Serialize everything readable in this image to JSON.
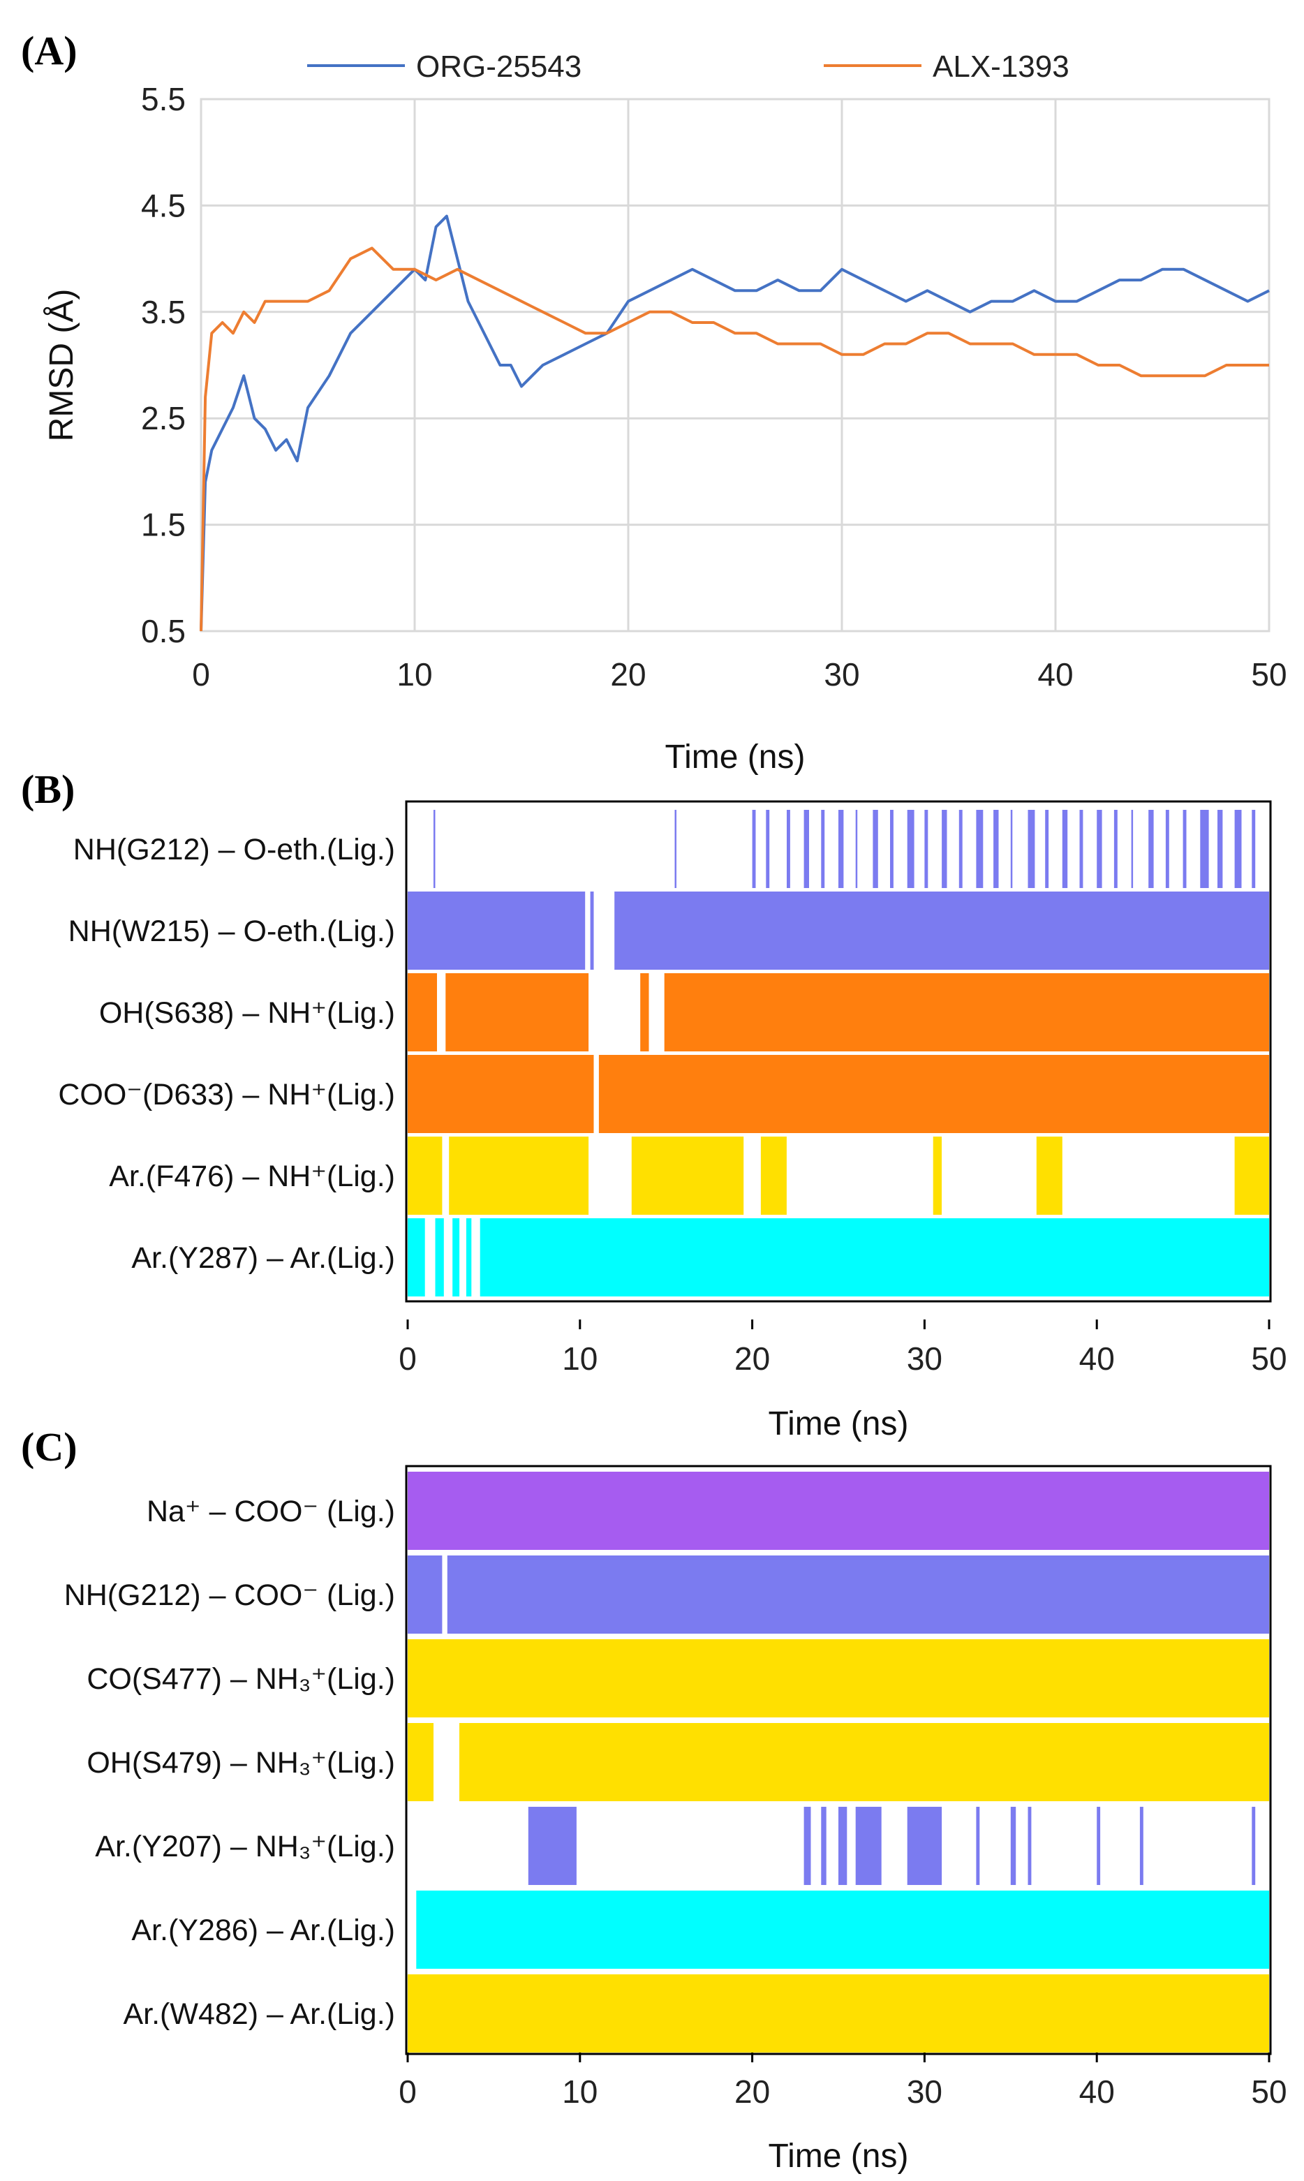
{
  "chart_data": [
    {
      "type": "line",
      "panel": "(A)",
      "xlabel": "Time (ns)",
      "ylabel": "RMSD (Å)",
      "xlim": [
        0,
        50
      ],
      "ylim": [
        0.5,
        5.5
      ],
      "xticks": [
        "0",
        "10",
        "20",
        "30",
        "40",
        "50"
      ],
      "yticks": [
        "0.5",
        "1.5",
        "2.5",
        "3.5",
        "4.5",
        "5.5"
      ],
      "grid": true,
      "legend_position": "top",
      "series": [
        {
          "name": "ORG-25543",
          "color": "#4472c4",
          "x": [
            0,
            0.2,
            0.5,
            1,
            1.5,
            2,
            2.5,
            3,
            3.5,
            4,
            4.5,
            5,
            6,
            7,
            8,
            9,
            10,
            10.5,
            11,
            11.5,
            12,
            12.5,
            13,
            13.5,
            14,
            14.5,
            15,
            15.5,
            16,
            17,
            18,
            19,
            20,
            21,
            22,
            23,
            24,
            25,
            26,
            27,
            28,
            29,
            30,
            31,
            32,
            33,
            34,
            35,
            36,
            37,
            38,
            39,
            40,
            41,
            42,
            43,
            44,
            45,
            46,
            47,
            48,
            49,
            50
          ],
          "y": [
            0.5,
            1.9,
            2.2,
            2.4,
            2.6,
            2.9,
            2.5,
            2.4,
            2.2,
            2.3,
            2.1,
            2.6,
            2.9,
            3.3,
            3.5,
            3.7,
            3.9,
            3.8,
            4.3,
            4.4,
            4.0,
            3.6,
            3.4,
            3.2,
            3.0,
            3.0,
            2.8,
            2.9,
            3.0,
            3.1,
            3.2,
            3.3,
            3.6,
            3.7,
            3.8,
            3.9,
            3.8,
            3.7,
            3.7,
            3.8,
            3.7,
            3.7,
            3.9,
            3.8,
            3.7,
            3.6,
            3.7,
            3.6,
            3.5,
            3.6,
            3.6,
            3.7,
            3.6,
            3.6,
            3.7,
            3.8,
            3.8,
            3.9,
            3.9,
            3.8,
            3.7,
            3.6,
            3.7
          ]
        },
        {
          "name": "ALX-1393",
          "color": "#ed7d31",
          "x": [
            0,
            0.2,
            0.5,
            1,
            1.5,
            2,
            2.5,
            3,
            4,
            5,
            6,
            7,
            8,
            9,
            10,
            11,
            12,
            13,
            14,
            15,
            16,
            17,
            18,
            19,
            20,
            21,
            22,
            23,
            24,
            25,
            26,
            27,
            28,
            29,
            30,
            31,
            32,
            33,
            34,
            35,
            36,
            37,
            38,
            39,
            40,
            41,
            42,
            43,
            44,
            45,
            46,
            47,
            48,
            49,
            50
          ],
          "y": [
            0.5,
            2.7,
            3.3,
            3.4,
            3.3,
            3.5,
            3.4,
            3.6,
            3.6,
            3.6,
            3.7,
            4.0,
            4.1,
            3.9,
            3.9,
            3.8,
            3.9,
            3.8,
            3.7,
            3.6,
            3.5,
            3.4,
            3.3,
            3.3,
            3.4,
            3.5,
            3.5,
            3.4,
            3.4,
            3.3,
            3.3,
            3.2,
            3.2,
            3.2,
            3.1,
            3.1,
            3.2,
            3.2,
            3.3,
            3.3,
            3.2,
            3.2,
            3.2,
            3.1,
            3.1,
            3.1,
            3.0,
            3.0,
            2.9,
            2.9,
            2.9,
            2.9,
            3.0,
            3.0,
            3.0
          ]
        }
      ]
    },
    {
      "type": "heatmap",
      "panel": "(B)",
      "xlabel": "Time (ns)",
      "xlim": [
        0,
        50
      ],
      "xticks": [
        "0",
        "10",
        "20",
        "30",
        "40",
        "50"
      ],
      "rows": [
        {
          "label": "NH(G212) – O-eth.(Lig.)",
          "color": "#7b7bf0",
          "present": [
            [
              1.5,
              1.6
            ],
            [
              15.5,
              15.6
            ],
            [
              20,
              20.2
            ],
            [
              20.8,
              21
            ],
            [
              22,
              22.2
            ],
            [
              23,
              23.3
            ],
            [
              24,
              24.2
            ],
            [
              25,
              25.3
            ],
            [
              26,
              26.1
            ],
            [
              27,
              27.3
            ],
            [
              28,
              28.2
            ],
            [
              29,
              29.4
            ],
            [
              30,
              30.2
            ],
            [
              31,
              31.3
            ],
            [
              32,
              32.2
            ],
            [
              33,
              33.4
            ],
            [
              34,
              34.3
            ],
            [
              35,
              35.1
            ],
            [
              36,
              36.4
            ],
            [
              37,
              37.2
            ],
            [
              38,
              38.3
            ],
            [
              39,
              39.2
            ],
            [
              40,
              40.3
            ],
            [
              41,
              41.2
            ],
            [
              42,
              42.1
            ],
            [
              43,
              43.3
            ],
            [
              44,
              44.2
            ],
            [
              45,
              45.2
            ],
            [
              46,
              46.5
            ],
            [
              47,
              47.3
            ],
            [
              48,
              48.4
            ],
            [
              49,
              49.2
            ]
          ]
        },
        {
          "label": "NH(W215) – O-eth.(Lig.)",
          "color": "#7b7bf0",
          "present": [
            [
              0,
              10.3
            ],
            [
              10.6,
              10.8
            ],
            [
              12,
              50
            ]
          ]
        },
        {
          "label": "OH(S638) – NH⁺(Lig.)",
          "color": "#ff7f0e",
          "present": [
            [
              0,
              1.7
            ],
            [
              2.2,
              10.5
            ],
            [
              13.5,
              14
            ],
            [
              14.9,
              50
            ]
          ]
        },
        {
          "label": "COO⁻(D633) – NH⁺(Lig.)",
          "color": "#ff7f0e",
          "present": [
            [
              0,
              10.8
            ],
            [
              11.1,
              50
            ]
          ]
        },
        {
          "label": "Ar.(F476) – NH⁺(Lig.)",
          "color": "#ffe000",
          "present": [
            [
              0,
              2
            ],
            [
              2.4,
              10.5
            ],
            [
              13,
              19.5
            ],
            [
              20.5,
              22
            ],
            [
              30.5,
              31
            ],
            [
              36.5,
              38
            ],
            [
              48,
              50
            ]
          ]
        },
        {
          "label": "Ar.(Y287) – Ar.(Lig.)",
          "color": "#00ffff",
          "present": [
            [
              0,
              1
            ],
            [
              1.6,
              2.1
            ],
            [
              2.6,
              3
            ],
            [
              3.4,
              3.7
            ],
            [
              4.2,
              50
            ]
          ]
        }
      ]
    },
    {
      "type": "heatmap",
      "panel": "(C)",
      "xlabel": "Time (ns)",
      "xlim": [
        0,
        50
      ],
      "xticks": [
        "0",
        "10",
        "20",
        "30",
        "40",
        "50"
      ],
      "rows": [
        {
          "label": "Na⁺ – COO⁻ (Lig.)",
          "color": "#a65cf0",
          "present": [
            [
              0,
              50
            ]
          ]
        },
        {
          "label": "NH(G212) – COO⁻ (Lig.)",
          "color": "#7b7bf0",
          "present": [
            [
              0,
              2
            ],
            [
              2.3,
              50
            ]
          ]
        },
        {
          "label": "CO(S477) – NH₃⁺(Lig.)",
          "color": "#ffe000",
          "present": [
            [
              0,
              50
            ]
          ]
        },
        {
          "label": "OH(S479) – NH₃⁺(Lig.)",
          "color": "#ffe000",
          "present": [
            [
              0,
              1.5
            ],
            [
              3,
              50
            ]
          ]
        },
        {
          "label": "Ar.(Y207) – NH₃⁺(Lig.)",
          "color": "#7b7bf0",
          "present": [
            [
              7,
              9.8
            ],
            [
              23,
              23.4
            ],
            [
              24,
              24.3
            ],
            [
              25,
              25.5
            ],
            [
              26,
              27.5
            ],
            [
              29,
              31
            ],
            [
              33,
              33.2
            ],
            [
              35,
              35.3
            ],
            [
              36,
              36.2
            ],
            [
              40,
              40.2
            ],
            [
              42.5,
              42.7
            ],
            [
              49,
              49.2
            ]
          ]
        },
        {
          "label": "Ar.(Y286) – Ar.(Lig.)",
          "color": "#00ffff",
          "present": [
            [
              0.5,
              50
            ]
          ]
        },
        {
          "label": "Ar.(W482) – Ar.(Lig.)",
          "color": "#ffe000",
          "present": [
            [
              0,
              50
            ]
          ]
        }
      ]
    }
  ]
}
